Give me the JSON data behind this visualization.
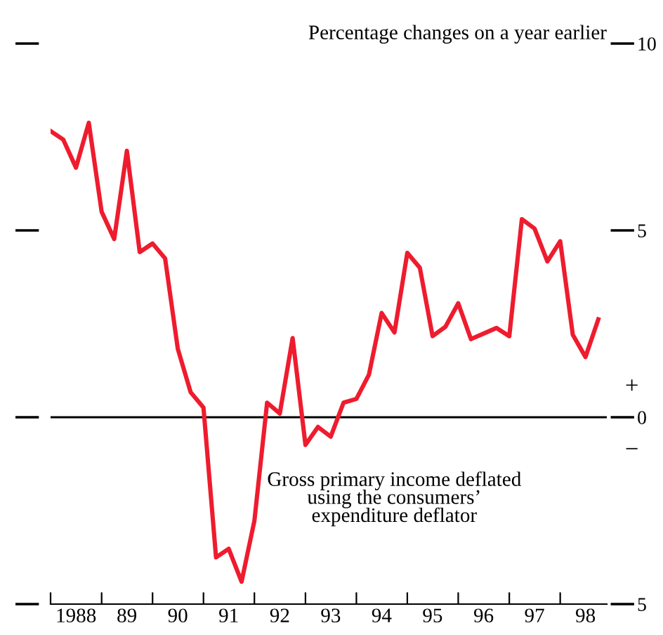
{
  "chart_data": {
    "type": "line",
    "ylabel": "Percentage changes on a year earlier",
    "x": [
      "1988-01",
      "1988-04",
      "1988-07",
      "1988-10",
      "1989-01",
      "1989-04",
      "1989-07",
      "1989-10",
      "1990-01",
      "1990-04",
      "1990-07",
      "1990-10",
      "1991-01",
      "1991-04",
      "1991-07",
      "1991-10",
      "1992-01",
      "1992-04",
      "1992-07",
      "1992-10",
      "1993-01",
      "1993-04",
      "1993-07",
      "1993-10",
      "1994-01",
      "1994-04",
      "1994-07",
      "1994-10",
      "1995-01",
      "1995-04",
      "1995-07",
      "1995-10",
      "1996-01",
      "1996-04",
      "1996-07",
      "1996-10",
      "1997-01",
      "1997-04",
      "1997-07",
      "1997-10",
      "1998-01",
      "1998-04",
      "1998-07",
      "1998-10"
    ],
    "series": [
      {
        "name": "Gross primary income deflated\nusing the consumers’\nexpenditure deflator",
        "color": "#ee1c2e",
        "values": [
          7.66,
          7.43,
          6.68,
          7.88,
          5.5,
          4.77,
          7.13,
          4.42,
          4.65,
          4.25,
          1.83,
          0.67,
          0.26,
          -3.75,
          -3.52,
          -4.4,
          -2.77,
          0.39,
          0.1,
          2.12,
          -0.74,
          -0.26,
          -0.52,
          0.39,
          0.49,
          1.14,
          2.79,
          2.27,
          4.4,
          4.0,
          2.17,
          2.42,
          3.05,
          2.09,
          2.24,
          2.39,
          2.17,
          5.3,
          5.05,
          4.17,
          4.71,
          2.21,
          1.61,
          2.62
        ]
      }
    ],
    "xlim": [
      "1988-01",
      "1998-12"
    ],
    "xticks": [
      {
        "value": "1988-01",
        "label": null
      },
      {
        "value": "1988-07",
        "label": "1988"
      },
      {
        "value": "1989-01",
        "label": null
      },
      {
        "value": "1989-07",
        "label": "89"
      },
      {
        "value": "1990-01",
        "label": null
      },
      {
        "value": "1990-07",
        "label": "90"
      },
      {
        "value": "1991-01",
        "label": null
      },
      {
        "value": "1991-07",
        "label": "91"
      },
      {
        "value": "1992-01",
        "label": null
      },
      {
        "value": "1992-07",
        "label": "92"
      },
      {
        "value": "1993-01",
        "label": null
      },
      {
        "value": "1993-07",
        "label": "93"
      },
      {
        "value": "1994-01",
        "label": null
      },
      {
        "value": "1994-07",
        "label": "94"
      },
      {
        "value": "1995-01",
        "label": null
      },
      {
        "value": "1995-07",
        "label": "95"
      },
      {
        "value": "1996-01",
        "label": null
      },
      {
        "value": "1996-07",
        "label": "96"
      },
      {
        "value": "1997-01",
        "label": null
      },
      {
        "value": "1997-07",
        "label": "97"
      },
      {
        "value": "1998-01",
        "label": null
      },
      {
        "value": "1998-07",
        "label": "98"
      }
    ],
    "ylim": [
      -5,
      10
    ],
    "yticks": [
      {
        "value": -5,
        "label": "5"
      },
      0,
      5,
      10
    ],
    "ref_lines": [
      {
        "axis": "y",
        "value": 0,
        "color": "#000000"
      }
    ],
    "annotations": [
      "+",
      "−"
    ],
    "grid": false,
    "legend": false,
    "marker": "none",
    "line_style": "solid"
  }
}
